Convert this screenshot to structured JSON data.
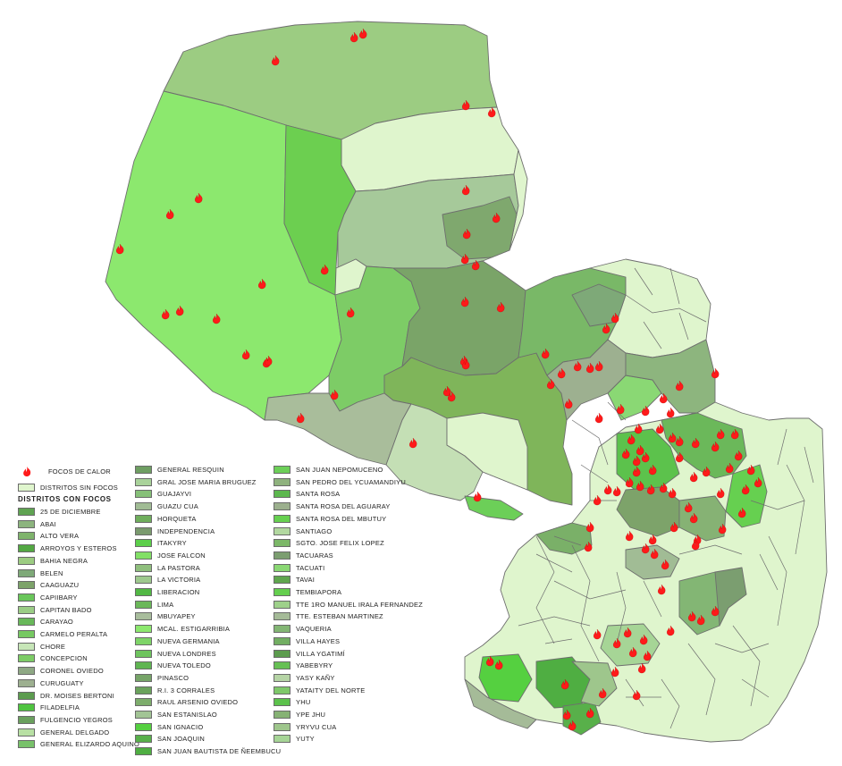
{
  "legend": {
    "fire_label": "FOCOS DE CALOR",
    "no_fire_label": "DISTRITOS SIN FOCOS",
    "with_fire_title": "DISTRITOS CON FOCOS",
    "no_fire_color": "#dff5cd",
    "col1": [
      {
        "label": "25 DE DICIEMBRE",
        "color": "#5fa352"
      },
      {
        "label": "ABAI",
        "color": "#8cb47e"
      },
      {
        "label": "ALTO VERA",
        "color": "#7fb46c"
      },
      {
        "label": "ARROYOS Y ESTEROS",
        "color": "#53a843"
      },
      {
        "label": "BAHIA NEGRA",
        "color": "#9ccc82"
      },
      {
        "label": "BELEN",
        "color": "#7ea978"
      },
      {
        "label": "CAAGUAZU",
        "color": "#7da36a"
      },
      {
        "label": "CAPIIBARY",
        "color": "#69c65a"
      },
      {
        "label": "CAPITAN BADO",
        "color": "#9bcd86"
      },
      {
        "label": "CARAYAO",
        "color": "#68b85a"
      },
      {
        "label": "CARMELO PERALTA",
        "color": "#76c962"
      },
      {
        "label": "CHORE",
        "color": "#c7e6b8"
      },
      {
        "label": "CONCEPCION",
        "color": "#7dcc66"
      },
      {
        "label": "CORONEL OVIEDO",
        "color": "#8ea884"
      },
      {
        "label": "CURUGUATY",
        "color": "#9db090"
      },
      {
        "label": "DR. MOISES BERTONI",
        "color": "#5c9c4f"
      },
      {
        "label": "FILADELFIA",
        "color": "#4fc440"
      },
      {
        "label": "FULGENCIO YEGROS",
        "color": "#6aa05e"
      },
      {
        "label": "GENERAL DELGADO",
        "color": "#b8e0a4"
      },
      {
        "label": "GENERAL ELIZARDO AQUINO",
        "color": "#78c16a"
      }
    ],
    "col2": [
      {
        "label": "GENERAL RESQUIN",
        "color": "#6e9e62"
      },
      {
        "label": "GRAL JOSE MARIA BRUGUEZ",
        "color": "#a9d29a"
      },
      {
        "label": "GUAJAYVI",
        "color": "#86c078"
      },
      {
        "label": "GUAZU CUA",
        "color": "#a1bc95"
      },
      {
        "label": "HORQUETA",
        "color": "#6fae5c"
      },
      {
        "label": "INDEPENDENCIA",
        "color": "#7a9a6e"
      },
      {
        "label": "ITAKYRY",
        "color": "#5ccf4a"
      },
      {
        "label": "JOSE FALCON",
        "color": "#82e066"
      },
      {
        "label": "LA PASTORA",
        "color": "#8fbf7d"
      },
      {
        "label": "LA VICTORIA",
        "color": "#9ec98e"
      },
      {
        "label": "LIBERACION",
        "color": "#52b844"
      },
      {
        "label": "LIMA",
        "color": "#6bb85a"
      },
      {
        "label": "MBUYAPEY",
        "color": "#a8bd9c"
      },
      {
        "label": "MCAL. ESTIGARRIBIA",
        "color": "#8ce86e"
      },
      {
        "label": "NUEVA GERMANIA",
        "color": "#7ed468"
      },
      {
        "label": "NUEVA LONDRES",
        "color": "#6ec45e"
      },
      {
        "label": "NUEVA TOLEDO",
        "color": "#5fb552"
      },
      {
        "label": "PINASCO",
        "color": "#76a468"
      },
      {
        "label": "R.I. 3 CORRALES",
        "color": "#6aa25c"
      },
      {
        "label": "RAUL ARSENIO OVIEDO",
        "color": "#7dad6c"
      },
      {
        "label": "SAN ESTANISLAO",
        "color": "#a2c495"
      },
      {
        "label": "SAN IGNACIO",
        "color": "#55d040"
      },
      {
        "label": "SAN JOAQUIN",
        "color": "#58b04a"
      },
      {
        "label": "SAN JUAN BAUTISTA DE ÑEEMBUCU",
        "color": "#4fae42"
      }
    ],
    "col3": [
      {
        "label": "SAN JUAN NEPOMUCENO",
        "color": "#6ccf58"
      },
      {
        "label": "SAN PEDRO DEL YCUAMANDIYU",
        "color": "#8fb27e"
      },
      {
        "label": "SANTA ROSA",
        "color": "#5cb84e"
      },
      {
        "label": "SANTA ROSA DEL AGUARAY",
        "color": "#9cb08e"
      },
      {
        "label": "SANTA ROSA DEL MBUTUY",
        "color": "#66d050"
      },
      {
        "label": "SANTIAGO",
        "color": "#b2d8a0"
      },
      {
        "label": "SGTO. JOSE FELIX LOPEZ",
        "color": "#7cb868"
      },
      {
        "label": "TACUARAS",
        "color": "#7b9e70"
      },
      {
        "label": "TACUATI",
        "color": "#8ad874"
      },
      {
        "label": "TAVAI",
        "color": "#5fa64e"
      },
      {
        "label": "TEMBIAPORA",
        "color": "#64cf4e"
      },
      {
        "label": "TTE 1RO MANUEL IRALA FERNANDEZ",
        "color": "#9ed18a"
      },
      {
        "label": "TTE. ESTEBAN MARTINEZ",
        "color": "#a5bb98"
      },
      {
        "label": "VAQUERIA",
        "color": "#83b674"
      },
      {
        "label": "VILLA HAYES",
        "color": "#72ae62"
      },
      {
        "label": "VILLA YGATIMÍ",
        "color": "#5c9c4e"
      },
      {
        "label": "YABEBYRY",
        "color": "#66c054"
      },
      {
        "label": "YASY KAÑY",
        "color": "#b5d4a5"
      },
      {
        "label": "YATAITY DEL NORTE",
        "color": "#7ec86a"
      },
      {
        "label": "YHU",
        "color": "#5cc24c"
      },
      {
        "label": "YPE JHU",
        "color": "#86b274"
      },
      {
        "label": "YRYVU CUA",
        "color": "#9ec68c"
      },
      {
        "label": "YUTY",
        "color": "#a6d596"
      }
    ]
  }
}
